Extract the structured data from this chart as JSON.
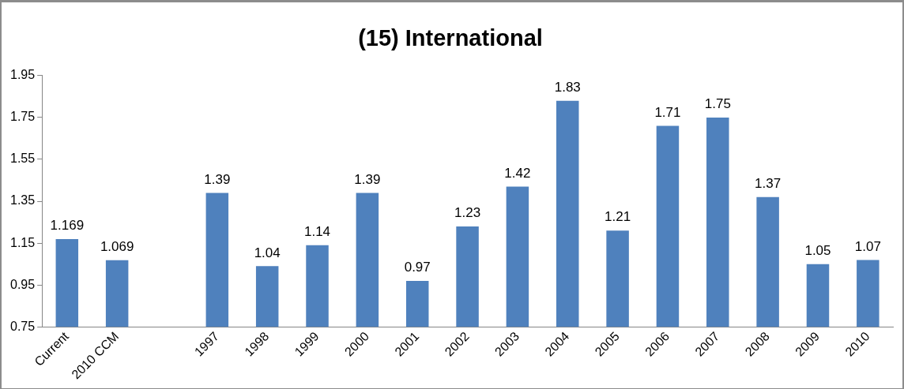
{
  "chart_data": {
    "type": "bar",
    "title": "(15) International",
    "categories": [
      "Current",
      "2010 CCM",
      null,
      "1997",
      "1998",
      "1999",
      "2000",
      "2001",
      "2002",
      "2003",
      "2004",
      "2005",
      "2006",
      "2007",
      "2008",
      "2009",
      "2010"
    ],
    "values": [
      1.169,
      1.069,
      null,
      1.39,
      1.04,
      1.14,
      1.39,
      0.97,
      1.23,
      1.42,
      1.83,
      1.21,
      1.71,
      1.75,
      1.37,
      1.05,
      1.07
    ],
    "color": "#4f81bd",
    "ylim": [
      0.75,
      1.95
    ],
    "yticks": [
      0.75,
      0.95,
      1.15,
      1.35,
      1.55,
      1.75,
      1.95
    ],
    "data_labels": true,
    "grid": false,
    "legend": false
  }
}
